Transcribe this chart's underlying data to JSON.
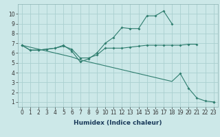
{
  "xlabel": "Humidex (Indice chaleur)",
  "x_values": [
    0,
    1,
    2,
    3,
    4,
    5,
    6,
    7,
    8,
    9,
    10,
    11,
    12,
    13,
    14,
    15,
    16,
    17,
    18,
    19,
    20,
    21,
    22,
    23
  ],
  "line1_y": [
    6.8,
    6.3,
    6.3,
    6.4,
    6.5,
    6.7,
    6.4,
    5.5,
    5.5,
    5.8,
    6.5,
    6.5,
    6.5,
    6.6,
    6.7,
    6.8,
    6.8,
    6.8,
    6.8,
    6.8,
    6.9,
    6.9,
    null,
    null
  ],
  "line2_y": [
    6.8,
    6.3,
    6.3,
    6.4,
    6.5,
    6.8,
    6.2,
    5.1,
    5.4,
    6.0,
    7.0,
    7.6,
    8.6,
    8.5,
    8.5,
    9.8,
    9.8,
    10.3,
    9.0,
    null,
    null,
    null,
    null,
    null
  ],
  "line3_y": [
    6.8,
    6.6,
    6.4,
    6.2,
    6.0,
    5.8,
    5.6,
    5.3,
    5.1,
    4.9,
    4.7,
    4.5,
    4.3,
    4.1,
    3.9,
    3.7,
    3.5,
    3.3,
    3.1,
    3.9,
    2.4,
    1.4,
    1.1,
    1.0
  ],
  "line_color": "#2e7d6e",
  "bg_color": "#cce8e8",
  "grid_color": "#aad0d0",
  "ylim_min": 0.5,
  "ylim_max": 11,
  "xlim_min": -0.5,
  "xlim_max": 23.5,
  "yticks": [
    1,
    2,
    3,
    4,
    5,
    6,
    7,
    8,
    9,
    10
  ],
  "xticks": [
    0,
    1,
    2,
    3,
    4,
    5,
    6,
    7,
    8,
    9,
    10,
    11,
    12,
    13,
    14,
    15,
    16,
    17,
    18,
    19,
    20,
    21,
    22,
    23
  ],
  "tick_fontsize": 5.5,
  "xlabel_fontsize": 6.5
}
